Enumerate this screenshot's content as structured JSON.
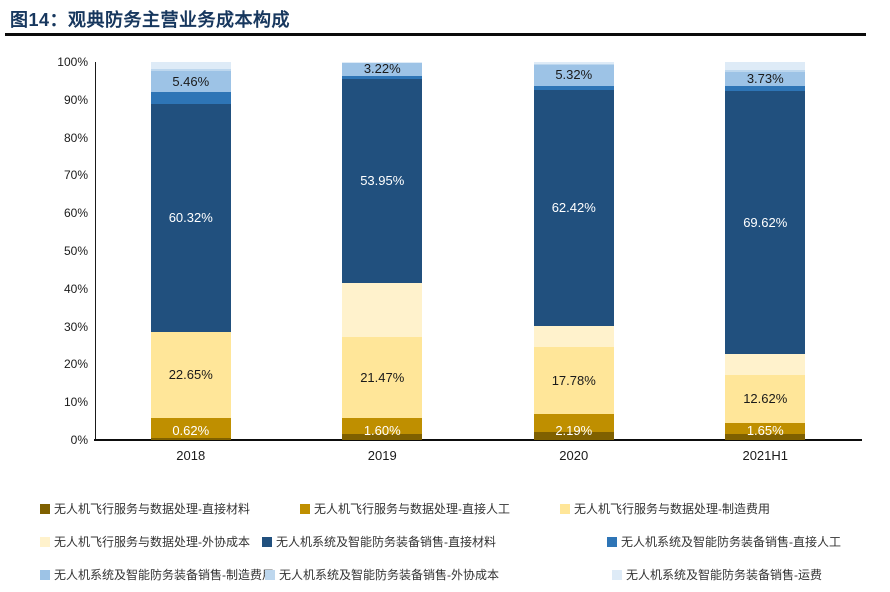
{
  "title": "图14：观典防务主营业务成本构成",
  "colors": {
    "title": "#17375E",
    "title_rule": "#0b0b0b",
    "axis": "#1a1a1a"
  },
  "chart_data": {
    "type": "bar",
    "stacked": true,
    "unit": "percent",
    "title": "观典防务主营业务成本构成",
    "categories": [
      "2018",
      "2019",
      "2020",
      "2021H1"
    ],
    "y_ticks": [
      "0%",
      "10%",
      "20%",
      "30%",
      "40%",
      "50%",
      "60%",
      "70%",
      "80%",
      "90%",
      "100%"
    ],
    "ylim": [
      0,
      100
    ],
    "grid": false,
    "legend_position": "bottom",
    "series": [
      {
        "name": "无人机飞行服务与数据处理-直接材料",
        "color": "#7F6000",
        "values": [
          0.62,
          1.6,
          2.19,
          1.65
        ],
        "labels": [
          "0.62%",
          "1.60%",
          "2.19%",
          "1.65%"
        ],
        "label_color": "#ffffff",
        "label_anchor": "bottom"
      },
      {
        "name": "无人机飞行服务与数据处理-直接人工",
        "color": "#BF8F00",
        "values": [
          5.3,
          4.2,
          4.6,
          2.9
        ],
        "estimated": true
      },
      {
        "name": "无人机飞行服务与数据处理-制造费用",
        "color": "#FFE699",
        "values": [
          22.65,
          21.47,
          17.78,
          12.62
        ],
        "labels": [
          "22.65%",
          "21.47%",
          "17.78%",
          "12.62%"
        ],
        "label_color": "#1a1a1a",
        "label_anchor": "center"
      },
      {
        "name": "无人机飞行服务与数据处理-外协成本",
        "color": "#FFF2CC",
        "values": [
          0.0,
          14.3,
          5.5,
          5.5
        ],
        "estimated": true
      },
      {
        "name": "无人机系统及智能防务装备销售-直接材料",
        "color": "#21507E",
        "values": [
          60.32,
          53.95,
          62.42,
          69.62
        ],
        "labels": [
          "60.32%",
          "53.95%",
          "62.42%",
          "69.62%"
        ],
        "label_color": "#ffffff",
        "label_anchor": "center"
      },
      {
        "name": "无人机系统及智能防务装备销售-直接人工",
        "color": "#2E75B6",
        "values": [
          3.2,
          0.9,
          1.3,
          1.3
        ],
        "estimated": true
      },
      {
        "name": "无人机系统及智能防务装备销售-制造费用",
        "color": "#9DC3E6",
        "values": [
          5.46,
          3.22,
          5.32,
          3.73
        ],
        "labels": [
          "5.46%",
          "3.22%",
          "5.32%",
          "3.73%"
        ],
        "label_color": "#1a1a1a",
        "label_anchor": "center"
      },
      {
        "name": "无人机系统及智能防务装备销售-外协成本",
        "color": "#BDD7EE",
        "values": [
          0.6,
          0.16,
          0.4,
          0.7
        ],
        "estimated": true
      },
      {
        "name": "无人机系统及智能防务装备销售-运费",
        "color": "#DEEBF7",
        "values": [
          1.85,
          0.2,
          0.49,
          1.98
        ],
        "estimated": true
      }
    ]
  }
}
